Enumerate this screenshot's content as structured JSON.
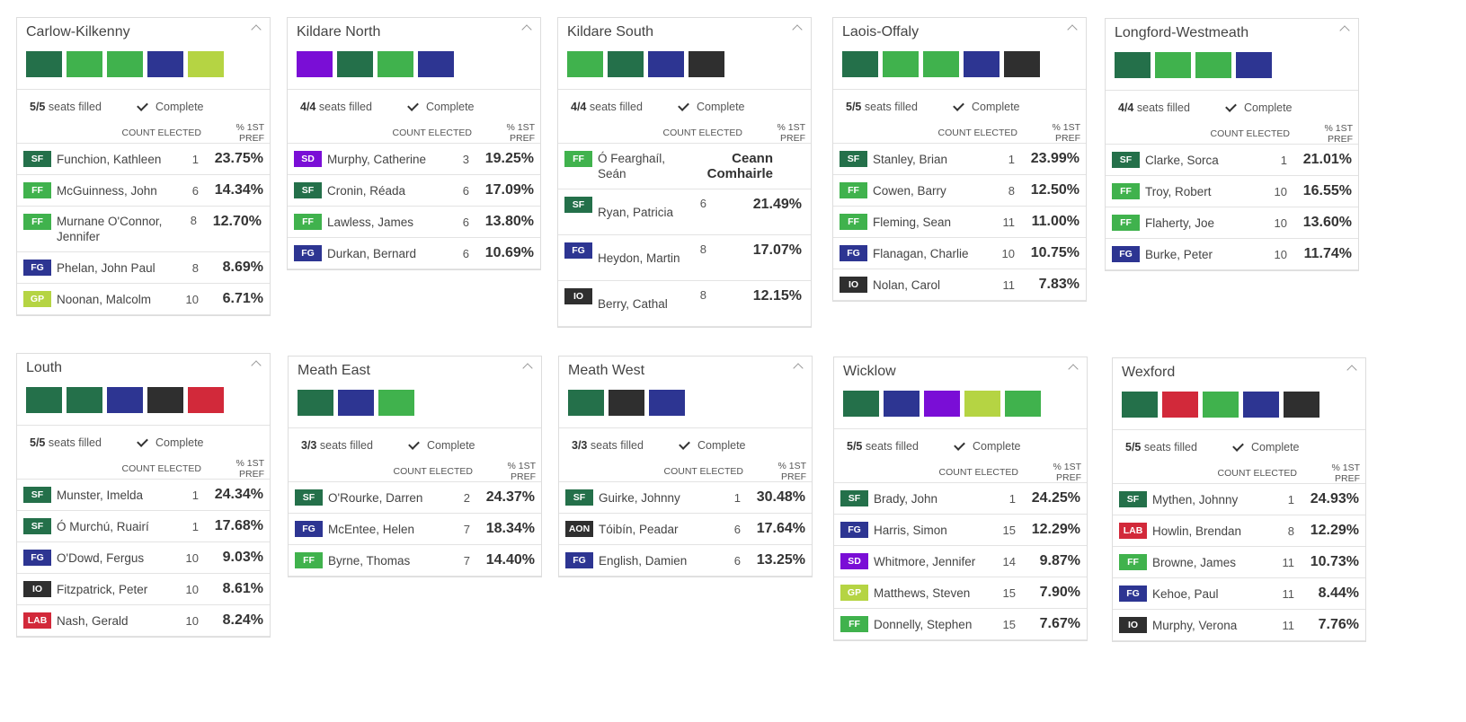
{
  "labels": {
    "seats_filled": "seats filled",
    "complete": "Complete",
    "count_elected": "COUNT ELECTED",
    "pct_first_pref": "% 1ST PREF"
  },
  "party_colors": {
    "SF": "#24704a",
    "FF": "#40b24d",
    "FG": "#2d3592",
    "GP": "#b5d443",
    "SD": "#7a0ed6",
    "IO": "#2f2f2f",
    "LAB": "#d2293a",
    "AON": "#2f2f2f"
  },
  "constituencies": [
    {
      "name": "Carlow-Kilkenny",
      "filled": "5/5",
      "swatches": [
        "SF",
        "FF",
        "FF",
        "FG",
        "GP"
      ],
      "candidates": [
        {
          "party": "SF",
          "name": "Funchion, Kathleen",
          "count": "1",
          "pct": "23.75%"
        },
        {
          "party": "FF",
          "name": "McGuinness, John",
          "count": "6",
          "pct": "14.34%"
        },
        {
          "party": "FF",
          "name": "Murnane O'Connor, Jennifer",
          "count": "8",
          "pct": "12.70%"
        },
        {
          "party": "FG",
          "name": "Phelan, John Paul",
          "count": "8",
          "pct": "8.69%"
        },
        {
          "party": "GP",
          "name": "Noonan, Malcolm",
          "count": "10",
          "pct": "6.71%"
        }
      ]
    },
    {
      "name": "Kildare North",
      "filled": "4/4",
      "swatches": [
        "SD",
        "SF",
        "FF",
        "FG"
      ],
      "candidates": [
        {
          "party": "SD",
          "name": "Murphy, Catherine",
          "count": "3",
          "pct": "19.25%"
        },
        {
          "party": "SF",
          "name": "Cronin, Réada",
          "count": "6",
          "pct": "17.09%"
        },
        {
          "party": "FF",
          "name": "Lawless, James",
          "count": "6",
          "pct": "13.80%"
        },
        {
          "party": "FG",
          "name": "Durkan, Bernard",
          "count": "6",
          "pct": "10.69%"
        }
      ]
    },
    {
      "name": "Kildare South",
      "filled": "4/4",
      "swatches": [
        "FF",
        "SF",
        "FG",
        "IO"
      ],
      "candidates": [
        {
          "party": "FF",
          "name": "Ó Fearghaíl, Seán",
          "count": "",
          "pct": "",
          "special": "Ceann Comhairle"
        },
        {
          "party": "SF",
          "name": "Ryan, Patricia",
          "count": "6",
          "pct": "21.49%"
        },
        {
          "party": "FG",
          "name": "Heydon, Martin",
          "count": "8",
          "pct": "17.07%"
        },
        {
          "party": "IO",
          "name": "Berry, Cathal",
          "count": "8",
          "pct": "12.15%"
        }
      ]
    },
    {
      "name": "Laois-Offaly",
      "filled": "5/5",
      "swatches": [
        "SF",
        "FF",
        "FF",
        "FG",
        "IO"
      ],
      "candidates": [
        {
          "party": "SF",
          "name": "Stanley, Brian",
          "count": "1",
          "pct": "23.99%"
        },
        {
          "party": "FF",
          "name": "Cowen, Barry",
          "count": "8",
          "pct": "12.50%"
        },
        {
          "party": "FF",
          "name": "Fleming, Sean",
          "count": "11",
          "pct": "11.00%"
        },
        {
          "party": "FG",
          "name": "Flanagan, Charlie",
          "count": "10",
          "pct": "10.75%"
        },
        {
          "party": "IO",
          "name": "Nolan, Carol",
          "count": "11",
          "pct": "7.83%"
        }
      ]
    },
    {
      "name": "Longford-Westmeath",
      "filled": "4/4",
      "swatches": [
        "SF",
        "FF",
        "FF",
        "FG"
      ],
      "candidates": [
        {
          "party": "SF",
          "name": "Clarke, Sorca",
          "count": "1",
          "pct": "21.01%"
        },
        {
          "party": "FF",
          "name": "Troy, Robert",
          "count": "10",
          "pct": "16.55%"
        },
        {
          "party": "FF",
          "name": "Flaherty, Joe",
          "count": "10",
          "pct": "13.60%"
        },
        {
          "party": "FG",
          "name": "Burke, Peter",
          "count": "10",
          "pct": "11.74%"
        }
      ]
    },
    {
      "name": "Louth",
      "filled": "5/5",
      "swatches": [
        "SF",
        "SF",
        "FG",
        "IO",
        "LAB"
      ],
      "candidates": [
        {
          "party": "SF",
          "name": "Munster, Imelda",
          "count": "1",
          "pct": "24.34%"
        },
        {
          "party": "SF",
          "name": "Ó Murchú, Ruairí",
          "count": "1",
          "pct": "17.68%"
        },
        {
          "party": "FG",
          "name": "O'Dowd, Fergus",
          "count": "10",
          "pct": "9.03%"
        },
        {
          "party": "IO",
          "name": "Fitzpatrick, Peter",
          "count": "10",
          "pct": "8.61%"
        },
        {
          "party": "LAB",
          "name": "Nash, Gerald",
          "count": "10",
          "pct": "8.24%"
        }
      ]
    },
    {
      "name": "Meath East",
      "filled": "3/3",
      "swatches": [
        "SF",
        "FG",
        "FF"
      ],
      "candidates": [
        {
          "party": "SF",
          "name": "O'Rourke, Darren",
          "count": "2",
          "pct": "24.37%"
        },
        {
          "party": "FG",
          "name": "McEntee, Helen",
          "count": "7",
          "pct": "18.34%"
        },
        {
          "party": "FF",
          "name": "Byrne, Thomas",
          "count": "7",
          "pct": "14.40%"
        }
      ]
    },
    {
      "name": "Meath West",
      "filled": "3/3",
      "swatches": [
        "SF",
        "AON",
        "FG"
      ],
      "candidates": [
        {
          "party": "SF",
          "name": "Guirke, Johnny",
          "count": "1",
          "pct": "30.48%"
        },
        {
          "party": "AON",
          "name": "Tóibín, Peadar",
          "count": "6",
          "pct": "17.64%"
        },
        {
          "party": "FG",
          "name": "English, Damien",
          "count": "6",
          "pct": "13.25%"
        }
      ]
    },
    {
      "name": "Wicklow",
      "filled": "5/5",
      "swatches": [
        "SF",
        "FG",
        "SD",
        "GP",
        "FF"
      ],
      "candidates": [
        {
          "party": "SF",
          "name": "Brady, John",
          "count": "1",
          "pct": "24.25%"
        },
        {
          "party": "FG",
          "name": "Harris, Simon",
          "count": "15",
          "pct": "12.29%"
        },
        {
          "party": "SD",
          "name": "Whitmore, Jennifer",
          "count": "14",
          "pct": "9.87%"
        },
        {
          "party": "GP",
          "name": "Matthews, Steven",
          "count": "15",
          "pct": "7.90%"
        },
        {
          "party": "FF",
          "name": "Donnelly, Stephen",
          "count": "15",
          "pct": "7.67%"
        }
      ]
    },
    {
      "name": "Wexford",
      "filled": "5/5",
      "swatches": [
        "SF",
        "LAB",
        "FF",
        "FG",
        "IO"
      ],
      "candidates": [
        {
          "party": "SF",
          "name": "Mythen, Johnny",
          "count": "1",
          "pct": "24.93%"
        },
        {
          "party": "LAB",
          "name": "Howlin, Brendan",
          "count": "8",
          "pct": "12.29%"
        },
        {
          "party": "FF",
          "name": "Browne, James",
          "count": "11",
          "pct": "10.73%"
        },
        {
          "party": "FG",
          "name": "Kehoe, Paul",
          "count": "11",
          "pct": "8.44%"
        },
        {
          "party": "IO",
          "name": "Murphy, Verona",
          "count": "11",
          "pct": "7.76%"
        }
      ]
    }
  ]
}
